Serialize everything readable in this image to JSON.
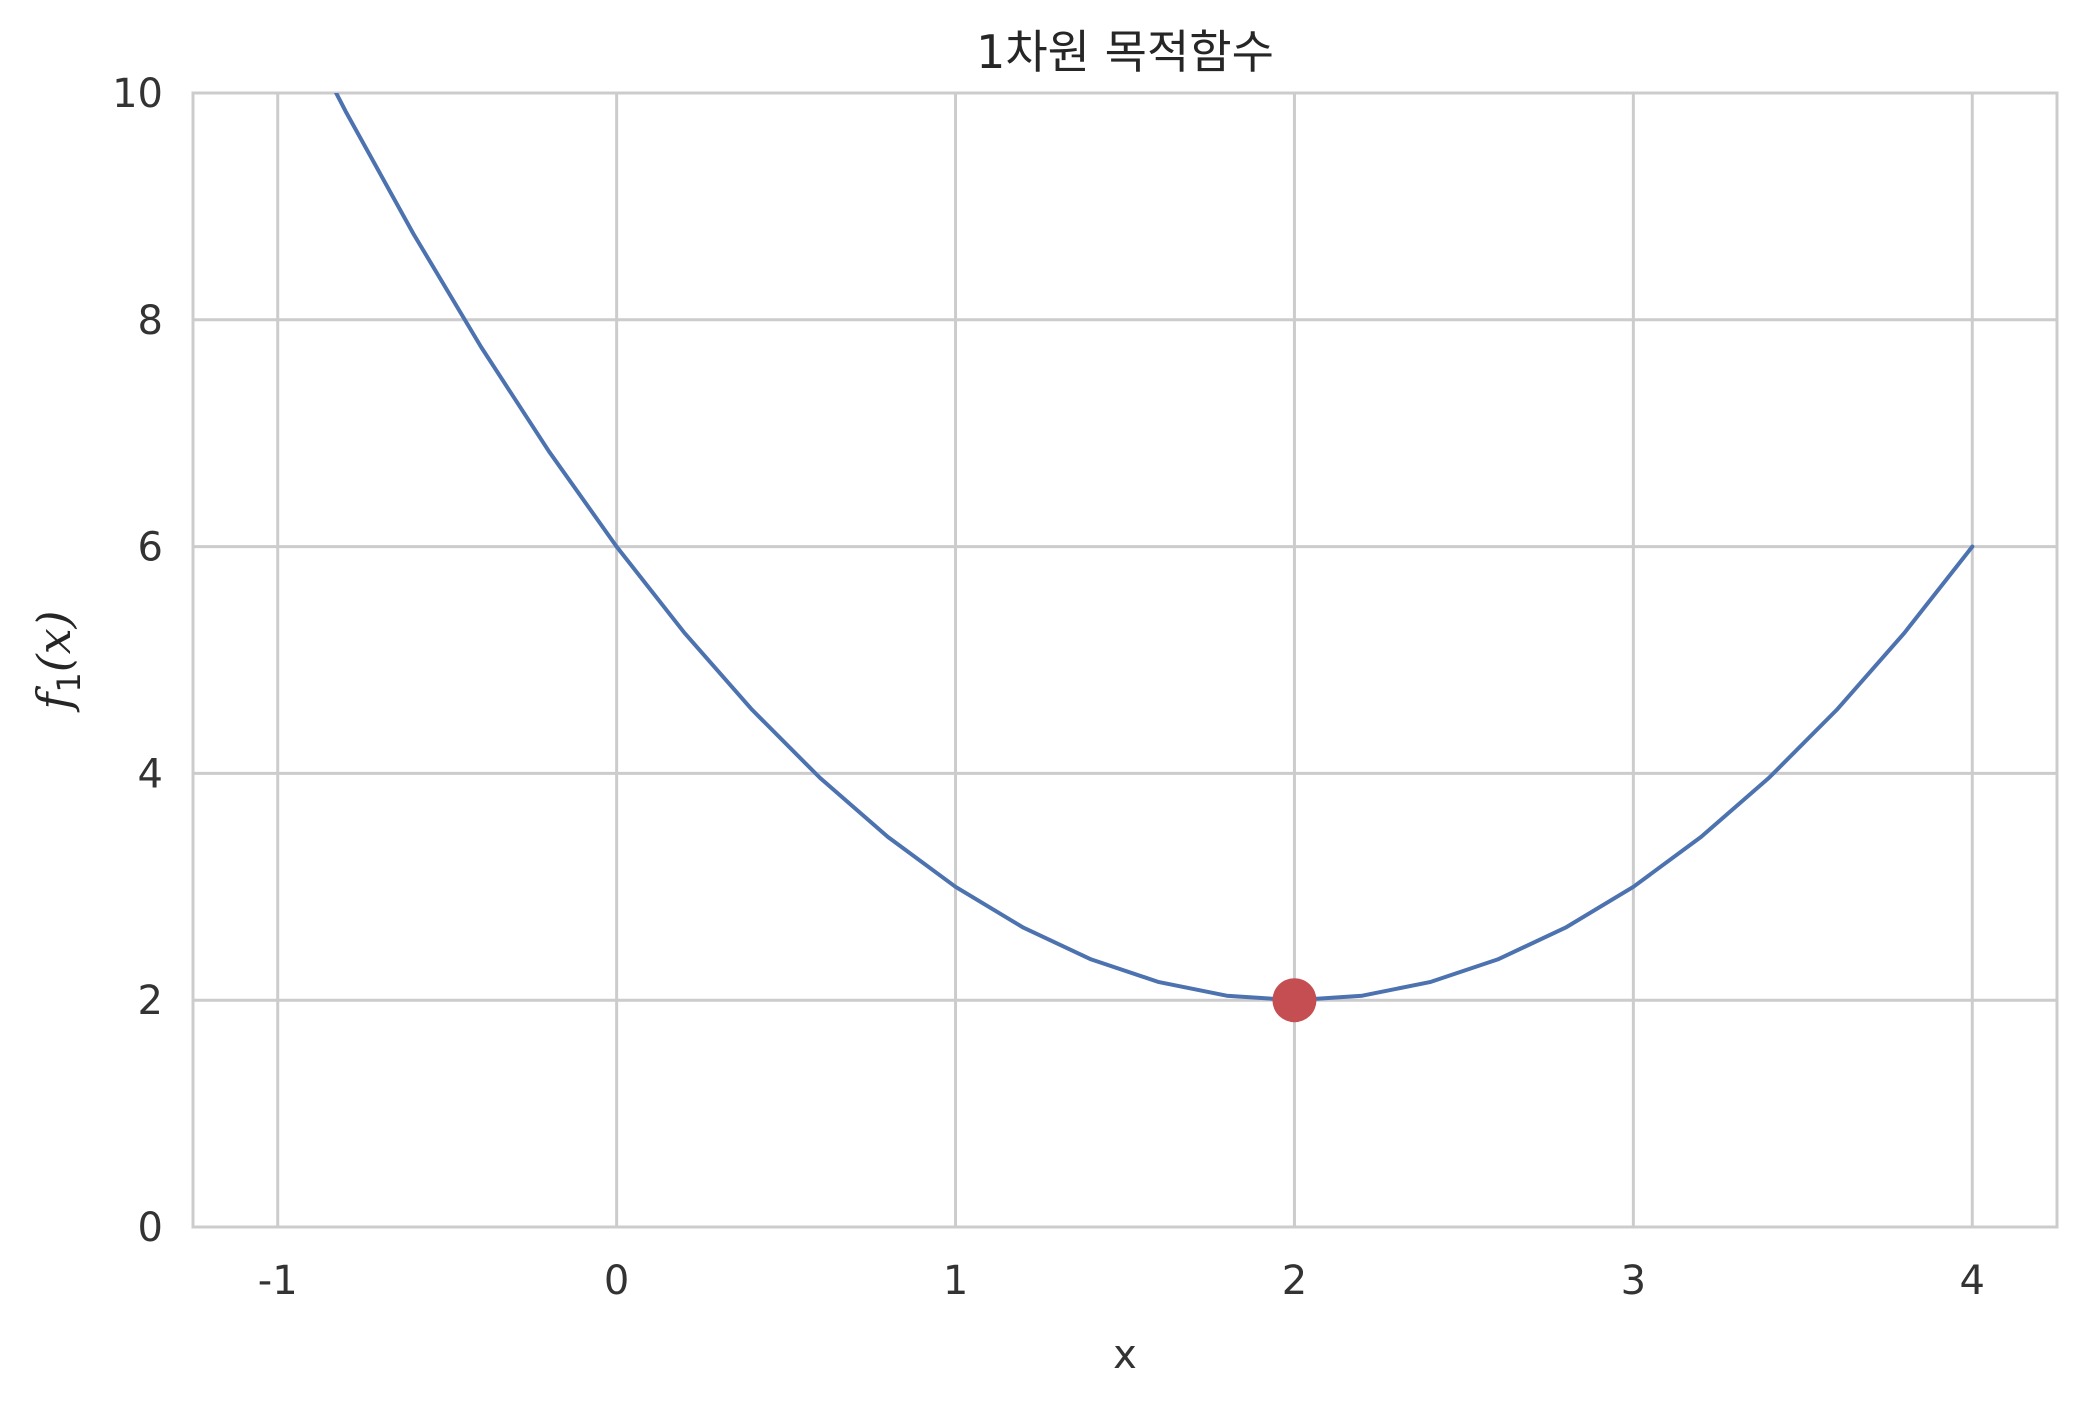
{
  "chart_data": {
    "type": "line",
    "title": "1차원 목적함수",
    "xlabel": "x",
    "ylabel": {
      "func": "f",
      "subscript": "1",
      "arg": "(x)"
    },
    "xlim": [
      -1.25,
      4.25
    ],
    "ylim": [
      0,
      10
    ],
    "xticks": [
      -1,
      0,
      1,
      2,
      3,
      4
    ],
    "yticks": [
      0,
      2,
      4,
      6,
      8,
      10
    ],
    "grid": true,
    "series": [
      {
        "kind": "line",
        "color": "#4c72b0",
        "x": [
          -1.0,
          -0.8,
          -0.6,
          -0.4,
          -0.2,
          0.0,
          0.2,
          0.4,
          0.6,
          0.8,
          1.0,
          1.2,
          1.4,
          1.6,
          1.8,
          2.0,
          2.2,
          2.4,
          2.6,
          2.8,
          3.0,
          3.2,
          3.4,
          3.6,
          3.8,
          4.0
        ],
        "values": [
          11.0,
          9.84,
          8.76,
          7.76,
          6.84,
          6.0,
          5.24,
          4.56,
          3.96,
          3.44,
          3.0,
          2.64,
          2.36,
          2.16,
          2.04,
          2.0,
          2.04,
          2.16,
          2.36,
          2.64,
          3.0,
          3.44,
          3.96,
          4.56,
          5.24,
          6.0
        ]
      },
      {
        "kind": "point",
        "color": "#c44e52",
        "x": [
          2
        ],
        "values": [
          2
        ]
      }
    ]
  }
}
